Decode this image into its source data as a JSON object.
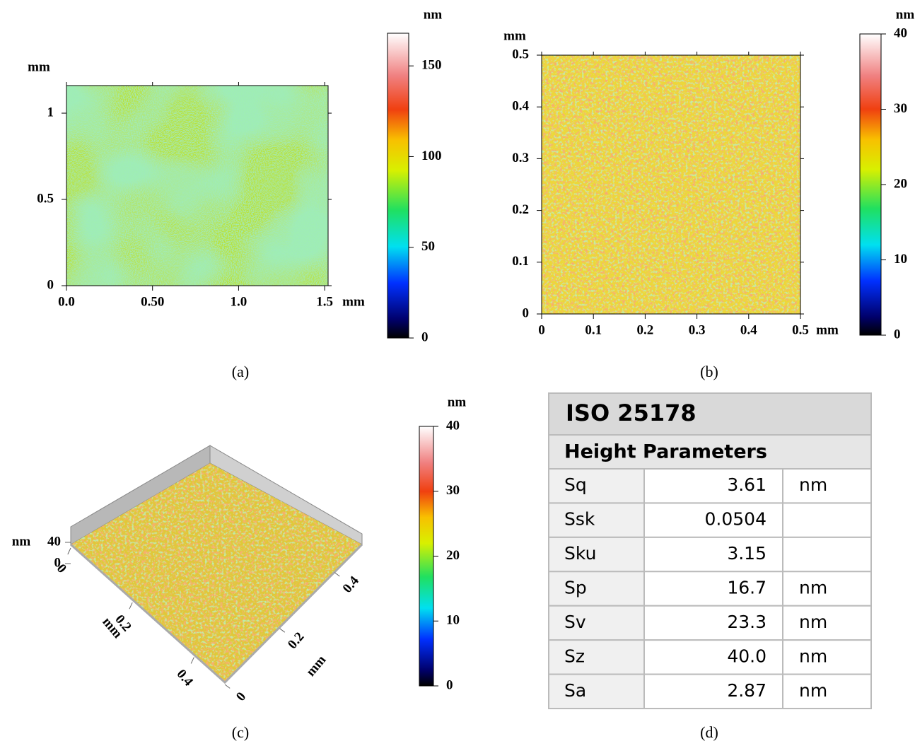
{
  "panels": [
    {
      "caption": "(a)",
      "x_unit": "mm",
      "y_unit": "mm",
      "xlim": [
        0,
        1.52
      ],
      "ylim": [
        0,
        1.16
      ],
      "xticks": [
        {
          "value": 0,
          "label": "0.0"
        },
        {
          "value": 0.5,
          "label": "0.50"
        },
        {
          "value": 1,
          "label": "1.0"
        },
        1.5
      ],
      "yticks": [
        0,
        0.5,
        1
      ],
      "colorbar": {
        "unit": "nm",
        "lim": [
          0,
          168
        ],
        "ticks": [
          0,
          50,
          100,
          150
        ]
      }
    },
    {
      "caption": "(b)",
      "x_unit": "mm",
      "y_unit": "mm",
      "xlim": [
        0,
        0.5
      ],
      "ylim": [
        0,
        0.5
      ],
      "xticks": [
        0,
        0.1,
        0.2,
        0.3,
        0.4,
        0.5
      ],
      "yticks": [
        0,
        0.1,
        0.2,
        0.3,
        0.4,
        0.5
      ],
      "colorbar": {
        "unit": "nm",
        "lim": [
          0,
          40
        ],
        "ticks": [
          0,
          10,
          20,
          30,
          40
        ]
      }
    }
  ],
  "surface": {
    "caption": "(c)",
    "z_unit": "nm",
    "zlim": [
      0,
      40
    ],
    "zticks": [
      0,
      40
    ],
    "left_axis": {
      "unit": "mm",
      "lim": [
        0,
        0.5
      ],
      "ticks": [
        0,
        0.2,
        0.4
      ]
    },
    "right_axis": {
      "unit": "mm",
      "lim": [
        0,
        0.5
      ],
      "ticks": [
        0,
        0.2,
        0.4
      ]
    },
    "colorbar": {
      "unit": "nm",
      "lim": [
        0,
        40
      ],
      "ticks": [
        0,
        10,
        20,
        30,
        40
      ]
    }
  },
  "table": {
    "caption": "(d)",
    "title": "ISO 25178",
    "subtitle": "Height Parameters",
    "rows": [
      [
        "Sq",
        "3.61",
        "nm"
      ],
      [
        "Ssk",
        "0.0504",
        ""
      ],
      [
        "Sku",
        "3.15",
        ""
      ],
      [
        "Sp",
        "16.7",
        "nm"
      ],
      [
        "Sv",
        "23.3",
        "nm"
      ],
      [
        "Sz",
        "40.0",
        "nm"
      ],
      [
        "Sa",
        "2.87",
        "nm"
      ]
    ]
  }
}
